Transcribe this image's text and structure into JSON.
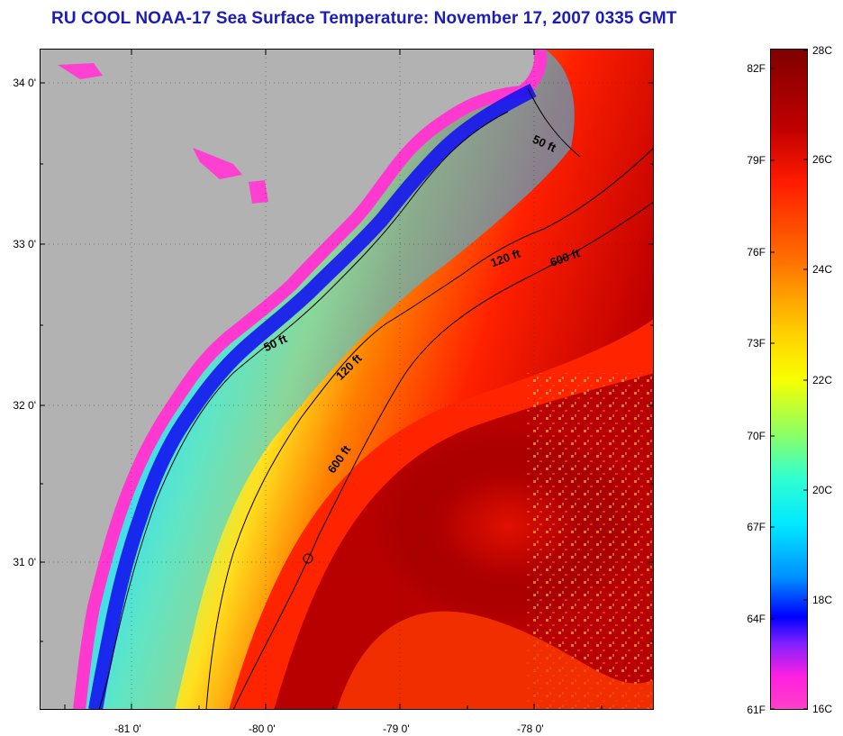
{
  "title": "RU COOL  NOAA-17  Sea Surface Temperature:  November 17, 2007 0335 GMT",
  "map": {
    "lat_labels": [
      "34 0'",
      "33 0'",
      "32 0'",
      "31 0'"
    ],
    "lon_labels": [
      "-81 0'",
      "-80 0'",
      "-79 0'",
      "-78 0'"
    ],
    "contour_labels": [
      "50 ft",
      "50 ft",
      "120 ft",
      "120 ft",
      "600 ft",
      "600 ft"
    ],
    "colors": {
      "land": "#b2b2b2",
      "cold": "#ff33cc",
      "warm": "#8b0000"
    }
  },
  "colorbar": {
    "fahrenheit_labels": [
      "82F",
      "79F",
      "76F",
      "73F",
      "70F",
      "67F",
      "64F",
      "61F"
    ],
    "celsius_labels": [
      "28C",
      "26C",
      "24C",
      "22C",
      "20C",
      "18C",
      "16C"
    ]
  }
}
